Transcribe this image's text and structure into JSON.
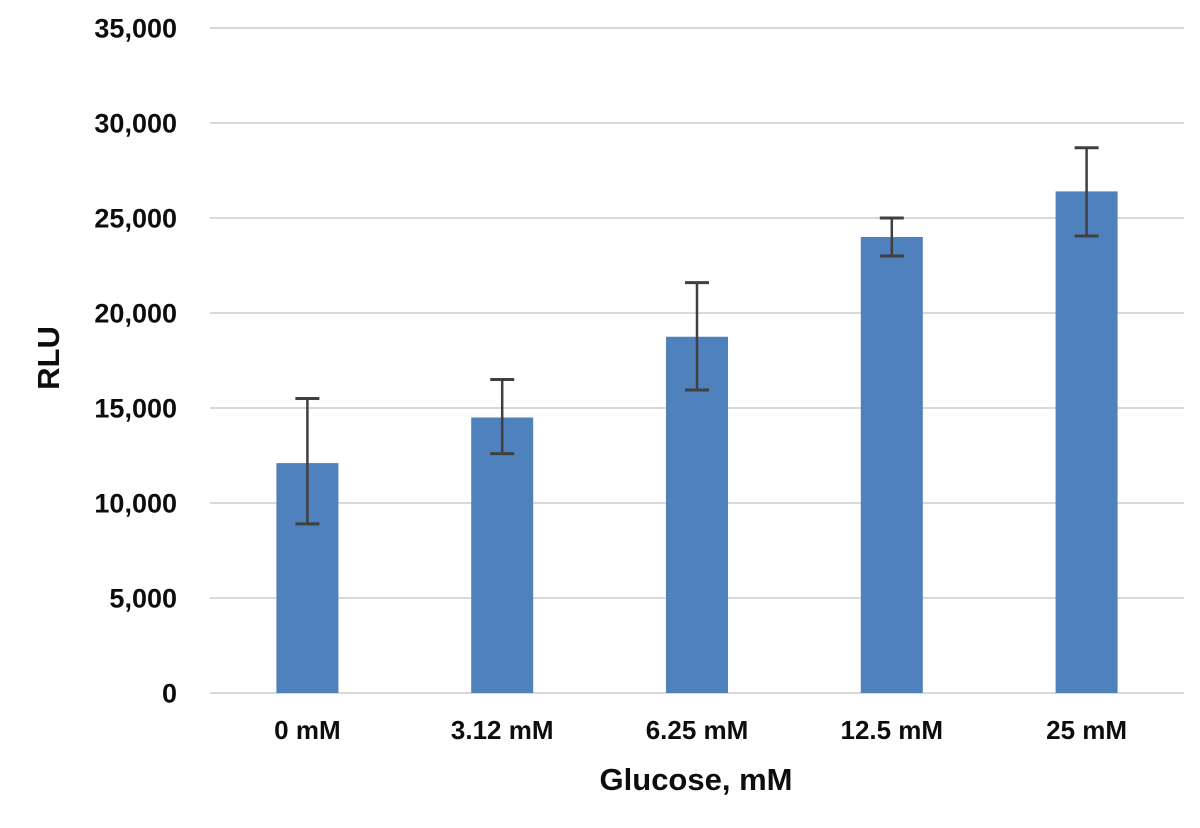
{
  "chart_data": {
    "type": "bar",
    "title": "",
    "xlabel": "Glucose, mM",
    "ylabel": "RLU",
    "categories": [
      "0 mM",
      "3.12 mM",
      "6.25 mM",
      "12.5 mM",
      "25 mM"
    ],
    "values": [
      12100,
      14500,
      18750,
      24000,
      26400
    ],
    "error_high": [
      15500,
      16500,
      21600,
      25000,
      28700
    ],
    "error_low": [
      8900,
      12600,
      15950,
      23000,
      24050
    ],
    "ylim": [
      0,
      35000
    ],
    "ytick_step": 5000,
    "ytick_labels": [
      "0",
      "5,000",
      "10,000",
      "15,000",
      "20,000",
      "25,000",
      "30,000",
      "35,000"
    ],
    "grid": true,
    "legend": "none",
    "bar_color": "#4F81BD",
    "error_color": "#404040",
    "gridline_color": "#D9D9D9",
    "text_color": "#0d0d0d",
    "background_color": "#ffffff"
  }
}
